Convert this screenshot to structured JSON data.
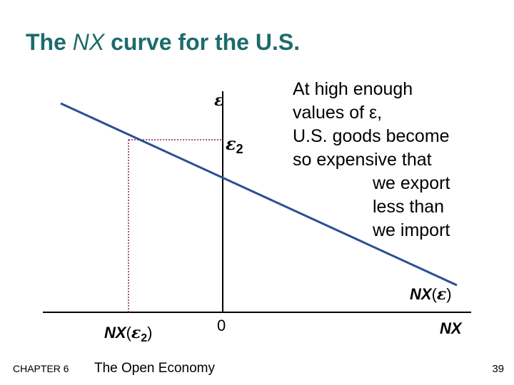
{
  "title": {
    "pre": "The",
    "em": "NX",
    "post": "curve for the U.S."
  },
  "y_axis_label": "ε",
  "epsilon2": {
    "symbol": "ε",
    "sub": "2"
  },
  "curve_label": {
    "nx": "NX",
    "open": "(",
    "symbol": "ε",
    "close": ")"
  },
  "x_axis_label": "NX",
  "origin_label": "0",
  "nx_epsilon2": {
    "nx": "NX",
    "open": "(",
    "symbol": "ε",
    "sub": "2",
    "close": ")"
  },
  "annotation": {
    "lines": [
      "At high enough",
      "values of ε,",
      "U.S. goods become",
      "so expensive that",
      "we export",
      "less than",
      "we import"
    ]
  },
  "footer": {
    "chapter": "CHAPTER 6",
    "book": "The Open Economy",
    "page": "39"
  }
}
